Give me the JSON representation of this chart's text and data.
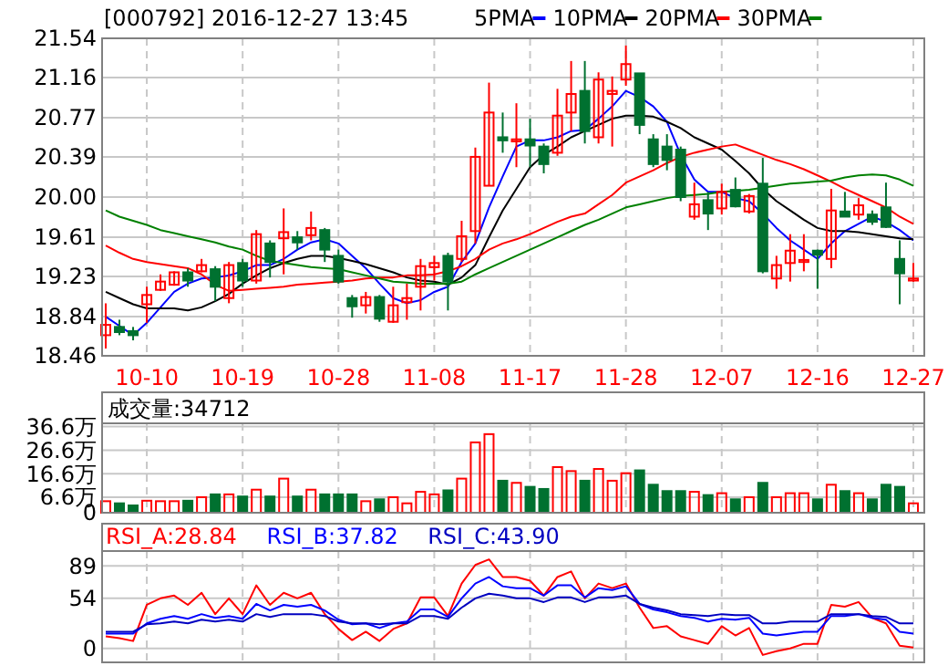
{
  "chart_data": [
    {
      "type": "candlestick",
      "title": "[000792] 2016-12-27 13:45",
      "legend": "top",
      "grid": true,
      "categories": [
        null,
        null,
        null,
        "10-10",
        null,
        null,
        null,
        null,
        null,
        null,
        "10-19",
        null,
        null,
        null,
        null,
        null,
        null,
        "10-28",
        null,
        null,
        null,
        null,
        null,
        null,
        "11-08",
        null,
        null,
        null,
        null,
        null,
        null,
        "11-17",
        null,
        null,
        null,
        null,
        null,
        null,
        "11-28",
        null,
        null,
        null,
        null,
        null,
        null,
        "12-07",
        null,
        null,
        null,
        null,
        null,
        null,
        "12-16",
        null,
        null,
        null,
        null,
        null,
        null,
        "12-27"
      ],
      "ylim": [
        18.46,
        21.54
      ],
      "yticks": [
        18.46,
        18.84,
        19.23,
        19.61,
        "20.00",
        20.39,
        20.77,
        21.16,
        21.54
      ],
      "ohlc": [
        [
          18.66,
          18.97,
          18.53,
          18.76
        ],
        [
          18.74,
          18.81,
          18.66,
          18.69
        ],
        [
          18.7,
          18.74,
          18.61,
          18.66
        ],
        [
          18.96,
          19.13,
          18.78,
          19.05
        ],
        [
          19.1,
          19.25,
          19.09,
          19.18
        ],
        [
          19.15,
          19.28,
          19.14,
          19.27
        ],
        [
          19.27,
          19.31,
          19.13,
          19.19
        ],
        [
          19.28,
          19.4,
          19.27,
          19.34
        ],
        [
          19.3,
          19.33,
          18.99,
          19.13
        ],
        [
          19.02,
          19.37,
          18.97,
          19.34
        ],
        [
          19.36,
          19.4,
          19.13,
          19.19
        ],
        [
          19.19,
          19.68,
          19.16,
          19.64
        ],
        [
          19.55,
          19.58,
          19.22,
          19.37
        ],
        [
          19.6,
          19.89,
          19.25,
          19.66
        ],
        [
          19.61,
          19.67,
          19.49,
          19.56
        ],
        [
          19.63,
          19.86,
          19.58,
          19.7
        ],
        [
          19.68,
          19.7,
          19.37,
          19.49
        ],
        [
          19.43,
          19.49,
          19.16,
          19.18
        ],
        [
          19.02,
          19.05,
          18.83,
          18.94
        ],
        [
          18.95,
          19.08,
          18.87,
          19.03
        ],
        [
          19.03,
          19.05,
          18.79,
          18.82
        ],
        [
          18.79,
          19.13,
          18.78,
          18.95
        ],
        [
          18.98,
          19.16,
          18.81,
          19.02
        ],
        [
          19.13,
          19.4,
          18.9,
          19.33
        ],
        [
          19.32,
          19.43,
          19.19,
          19.36
        ],
        [
          19.43,
          19.46,
          18.9,
          19.18
        ],
        [
          19.4,
          19.77,
          19.37,
          19.62
        ],
        [
          19.67,
          20.48,
          19.55,
          20.39
        ],
        [
          20.11,
          21.11,
          20.11,
          20.82
        ],
        [
          20.58,
          20.82,
          20.43,
          20.55
        ],
        [
          20.54,
          20.91,
          20.29,
          20.56
        ],
        [
          20.56,
          20.76,
          20.29,
          20.5
        ],
        [
          20.49,
          20.52,
          20.23,
          20.32
        ],
        [
          20.43,
          21.05,
          20.4,
          20.79
        ],
        [
          20.82,
          21.32,
          20.64,
          21.0
        ],
        [
          21.03,
          21.32,
          20.52,
          20.64
        ],
        [
          20.58,
          21.21,
          20.52,
          21.14
        ],
        [
          21.0,
          21.17,
          20.49,
          21.03
        ],
        [
          21.14,
          21.47,
          21.08,
          21.29
        ],
        [
          21.2,
          21.2,
          20.61,
          20.7
        ],
        [
          20.56,
          20.61,
          20.29,
          20.32
        ],
        [
          20.49,
          20.61,
          20.26,
          20.36
        ],
        [
          20.46,
          20.49,
          19.96,
          20.0
        ],
        [
          19.81,
          20.14,
          19.78,
          19.93
        ],
        [
          19.97,
          20.05,
          19.68,
          19.84
        ],
        [
          19.89,
          20.13,
          19.83,
          20.05
        ],
        [
          20.07,
          20.19,
          19.9,
          19.91
        ],
        [
          19.86,
          20.03,
          19.84,
          20.01
        ],
        [
          20.13,
          20.38,
          19.26,
          19.28
        ],
        [
          19.21,
          19.43,
          19.11,
          19.34
        ],
        [
          19.36,
          19.64,
          19.18,
          19.48
        ],
        [
          19.37,
          19.64,
          19.28,
          19.39
        ],
        [
          19.48,
          19.49,
          19.11,
          19.44
        ],
        [
          19.4,
          20.08,
          19.31,
          19.87
        ],
        [
          19.86,
          20.05,
          19.81,
          19.81
        ],
        [
          19.83,
          19.99,
          19.78,
          19.92
        ],
        [
          19.83,
          19.87,
          19.73,
          19.76
        ],
        [
          19.9,
          20.14,
          19.7,
          19.71
        ],
        [
          19.4,
          19.58,
          18.96,
          19.26
        ],
        [
          19.19,
          19.36,
          19.18,
          19.21
        ]
      ],
      "series": [
        {
          "name": "5PMA",
          "type": "line",
          "color": "#0000ff",
          "values": [
            18.84,
            18.75,
            18.66,
            18.78,
            18.93,
            19.08,
            19.16,
            19.21,
            19.22,
            19.24,
            19.28,
            19.34,
            19.34,
            19.4,
            19.49,
            19.56,
            19.59,
            19.55,
            19.43,
            19.31,
            19.16,
            19.02,
            18.97,
            19.0,
            19.08,
            19.13,
            19.37,
            19.55,
            19.9,
            20.2,
            20.49,
            20.55,
            20.55,
            20.58,
            20.64,
            20.65,
            20.76,
            20.88,
            21.03,
            20.97,
            20.88,
            20.73,
            20.41,
            20.17,
            20.05,
            20.05,
            19.99,
            19.96,
            19.84,
            19.7,
            19.58,
            19.49,
            19.4,
            19.55,
            19.67,
            19.74,
            19.81,
            19.76,
            19.68,
            19.58
          ]
        },
        {
          "name": "10PMA",
          "type": "line",
          "color": "#000000",
          "values": [
            19.08,
            19.02,
            18.96,
            18.92,
            18.92,
            18.92,
            18.9,
            18.93,
            18.99,
            19.06,
            19.16,
            19.24,
            19.31,
            19.36,
            19.4,
            19.43,
            19.43,
            19.41,
            19.38,
            19.35,
            19.31,
            19.27,
            19.22,
            19.19,
            19.18,
            19.15,
            19.22,
            19.34,
            19.61,
            19.87,
            20.08,
            20.29,
            20.41,
            20.49,
            20.58,
            20.64,
            20.7,
            20.76,
            20.79,
            20.79,
            20.78,
            20.73,
            20.67,
            20.58,
            20.52,
            20.46,
            20.35,
            20.23,
            20.08,
            19.96,
            19.87,
            19.78,
            19.7,
            19.67,
            19.67,
            19.66,
            19.64,
            19.62,
            19.6,
            19.59
          ]
        },
        {
          "name": "20PMA",
          "type": "line",
          "color": "#ff0000",
          "values": [
            19.53,
            19.46,
            19.4,
            19.37,
            19.35,
            19.33,
            19.31,
            19.25,
            19.15,
            19.09,
            19.1,
            19.11,
            19.12,
            19.13,
            19.15,
            19.16,
            19.17,
            19.18,
            19.19,
            19.21,
            19.22,
            19.22,
            19.24,
            19.24,
            19.25,
            19.28,
            19.33,
            19.4,
            19.49,
            19.55,
            19.59,
            19.64,
            19.7,
            19.76,
            19.81,
            19.84,
            19.93,
            20.02,
            20.14,
            20.2,
            20.26,
            20.33,
            20.39,
            20.43,
            20.46,
            20.49,
            20.51,
            20.46,
            20.41,
            20.36,
            20.32,
            20.27,
            20.21,
            20.15,
            20.08,
            20.02,
            19.96,
            19.9,
            19.81,
            19.74
          ]
        },
        {
          "name": "30PMA",
          "type": "line",
          "color": "#008000",
          "values": [
            19.87,
            19.81,
            19.77,
            19.73,
            19.68,
            19.65,
            19.62,
            19.59,
            19.56,
            19.52,
            19.49,
            19.43,
            19.38,
            19.36,
            19.34,
            19.32,
            19.31,
            19.3,
            19.27,
            19.24,
            19.21,
            19.18,
            19.17,
            19.16,
            19.16,
            19.16,
            19.18,
            19.25,
            19.31,
            19.37,
            19.43,
            19.49,
            19.55,
            19.61,
            19.67,
            19.73,
            19.78,
            19.84,
            19.9,
            19.93,
            19.96,
            19.99,
            20.01,
            20.02,
            20.03,
            20.05,
            20.06,
            20.07,
            20.09,
            20.11,
            20.13,
            20.14,
            20.15,
            20.16,
            20.19,
            20.21,
            20.22,
            20.21,
            20.17,
            20.11
          ]
        }
      ]
    },
    {
      "type": "bar",
      "grid": true,
      "tick_labels": "y",
      "annotations": [
        "成交量:34712"
      ],
      "categories": [
        null,
        null,
        null,
        null,
        null,
        null,
        null,
        null,
        null,
        null,
        null,
        null,
        null,
        null,
        null,
        null,
        null,
        null,
        null,
        null,
        null,
        null,
        null,
        null,
        null,
        null,
        null,
        null,
        null,
        null,
        null,
        null,
        null,
        null,
        null,
        null,
        null,
        null,
        null,
        null,
        null,
        null,
        null,
        null,
        null,
        null,
        null,
        null,
        null,
        null,
        null,
        null,
        null,
        null,
        null,
        null,
        null,
        null,
        null,
        null
      ],
      "ylim": [
        0,
        38
      ],
      "yticks": [
        0,
        {
          "value": 6.6,
          "label": "6.6万"
        },
        {
          "value": 16.6,
          "label": "16.6万"
        },
        {
          "value": 26.6,
          "label": "26.6万"
        },
        {
          "value": 36.6,
          "label": "36.6万"
        }
      ],
      "values": [
        4.9,
        4.0,
        3.1,
        5.1,
        4.9,
        4.9,
        5.1,
        6.6,
        7.8,
        7.8,
        6.9,
        9.8,
        6.9,
        14.5,
        6.9,
        9.8,
        7.8,
        7.8,
        7.8,
        4.9,
        5.7,
        6.6,
        4.0,
        8.9,
        7.8,
        9.5,
        14.5,
        29.9,
        33.4,
        13.6,
        12.7,
        11.0,
        10.1,
        19.4,
        17.7,
        13.6,
        18.6,
        13.6,
        16.8,
        18.0,
        11.9,
        9.2,
        9.2,
        8.9,
        7.5,
        8.3,
        5.7,
        6.6,
        12.7,
        6.6,
        8.3,
        8.3,
        5.7,
        11.9,
        9.2,
        8.3,
        5.7,
        11.9,
        11.0,
        4.0
      ]
    },
    {
      "type": "line",
      "grid": true,
      "tick_labels": "y",
      "legend": "top left",
      "categories": [
        null,
        null,
        null,
        null,
        null,
        null,
        null,
        null,
        null,
        null,
        null,
        null,
        null,
        null,
        null,
        null,
        null,
        null,
        null,
        null,
        null,
        null,
        null,
        null,
        null,
        null,
        null,
        null,
        null,
        null,
        null,
        null,
        null,
        null,
        null,
        null,
        null,
        null,
        null,
        null,
        null,
        null,
        null,
        null,
        null,
        null,
        null,
        null,
        null,
        null,
        null,
        null,
        null,
        null,
        null,
        null,
        null,
        null,
        null,
        null
      ],
      "ylim": [
        -15,
        105
      ],
      "yticks": [
        0,
        54,
        89
      ],
      "series": [
        {
          "name": "RSI_A:28.84",
          "color": "#ff0000",
          "values": [
            13,
            11,
            8,
            47,
            54,
            57,
            47,
            60,
            37,
            54,
            37,
            68,
            47,
            60,
            54,
            60,
            37,
            21,
            9,
            18,
            8,
            21,
            27,
            55,
            55,
            35,
            70,
            90,
            96,
            77,
            77,
            73,
            57,
            77,
            83,
            54,
            70,
            65,
            70,
            44,
            22,
            24,
            13,
            9,
            5,
            24,
            14,
            22,
            -7,
            -3,
            0,
            5,
            5,
            47,
            45,
            50,
            33,
            27,
            3,
            1
          ]
        },
        {
          "name": "RSI_B:37.82",
          "color": "#0000ff",
          "values": [
            16,
            16,
            16,
            27,
            32,
            35,
            32,
            37,
            33,
            35,
            32,
            48,
            41,
            47,
            45,
            47,
            41,
            31,
            26,
            27,
            22,
            27,
            29,
            42,
            42,
            34,
            54,
            70,
            77,
            67,
            65,
            65,
            57,
            68,
            68,
            55,
            65,
            63,
            67,
            48,
            42,
            39,
            35,
            33,
            29,
            32,
            31,
            33,
            16,
            14,
            16,
            18,
            18,
            35,
            35,
            37,
            33,
            31,
            18,
            16
          ]
        },
        {
          "name": "RSI_C:43.90",
          "color": "#0000c0",
          "values": [
            18,
            18,
            18,
            26,
            27,
            29,
            27,
            31,
            29,
            31,
            29,
            37,
            34,
            37,
            37,
            37,
            35,
            29,
            27,
            27,
            26,
            27,
            27,
            35,
            35,
            32,
            44,
            54,
            59,
            57,
            54,
            54,
            50,
            55,
            55,
            50,
            55,
            55,
            57,
            48,
            44,
            41,
            37,
            36,
            35,
            37,
            36,
            36,
            27,
            27,
            29,
            29,
            29,
            37,
            37,
            37,
            35,
            34,
            27,
            27
          ]
        }
      ]
    }
  ]
}
